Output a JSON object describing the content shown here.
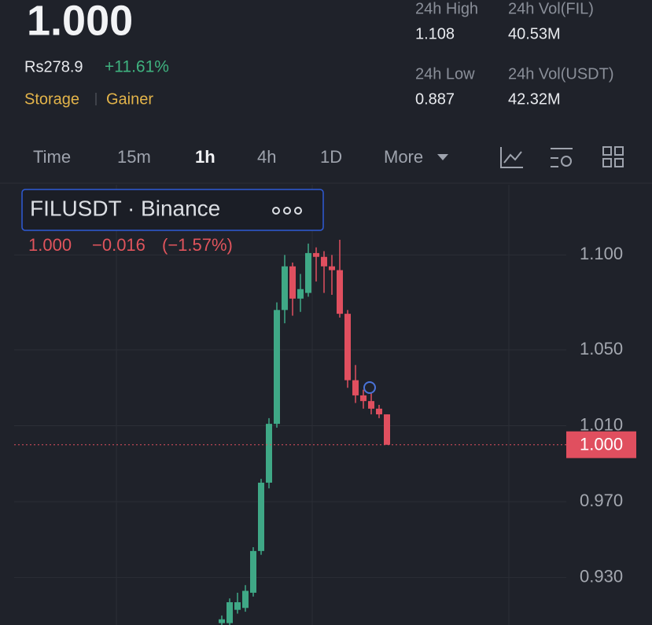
{
  "header": {
    "price": "1.000",
    "fiat_price": "Rs278.9",
    "change": "+11.61%",
    "tags": [
      "Storage",
      "Gainer"
    ],
    "stats": [
      {
        "label": "24h High",
        "value": "1.108"
      },
      {
        "label": "24h Vol(FIL)",
        "value": "40.53M"
      },
      {
        "label": "24h Low",
        "value": "0.887"
      },
      {
        "label": "24h Vol(USDT)",
        "value": "42.32M"
      }
    ]
  },
  "tabs": [
    "Time",
    "15m",
    "1h",
    "4h",
    "1D",
    "More"
  ],
  "chart_data": {
    "type": "candlestick",
    "title": "FILUSDT · Binance",
    "legend": {
      "close": "1.000",
      "change": "−0.016",
      "change_pct": "(−1.57%)"
    },
    "open": [
      0.906,
      0.906,
      0.913,
      0.914,
      0.922,
      0.944,
      0.98,
      1.011,
      1.071,
      1.094,
      1.077,
      1.08,
      1.101,
      1.099,
      1.094,
      1.092,
      1.069,
      1.034,
      1.026,
      1.023,
      1.019,
      1.016
    ],
    "high": [
      0.91,
      0.919,
      0.922,
      0.926,
      0.946,
      0.982,
      1.014,
      1.075,
      1.1,
      1.096,
      1.09,
      1.106,
      1.104,
      1.102,
      1.1,
      1.108,
      1.071,
      1.042,
      1.029,
      1.027,
      1.021,
      1.016
    ],
    "low": [
      0.905,
      0.905,
      0.911,
      0.912,
      0.92,
      0.942,
      0.977,
      1.009,
      1.064,
      1.068,
      1.07,
      1.078,
      1.086,
      1.08,
      1.079,
      1.067,
      1.03,
      1.022,
      1.019,
      1.016,
      1.014,
      1.0
    ],
    "close": [
      0.908,
      0.917,
      0.917,
      0.923,
      0.944,
      0.98,
      1.011,
      1.071,
      1.094,
      1.077,
      1.082,
      1.101,
      1.099,
      1.094,
      1.092,
      1.069,
      1.034,
      1.026,
      1.023,
      1.019,
      1.016,
      1.0
    ],
    "up_color": "#3fa886",
    "down_color": "#e04f5f",
    "ylim": [
      0.905,
      1.137
    ],
    "yticks": [
      {
        "value": 1.1,
        "label": "1.100"
      },
      {
        "value": 1.05,
        "label": "1.050"
      },
      {
        "value": 1.01,
        "label": "1.010"
      },
      {
        "value": 0.97,
        "label": "0.970"
      },
      {
        "value": 0.93,
        "label": "0.930"
      }
    ],
    "last_price": {
      "value": 1.0,
      "label": "1.000"
    },
    "grid": true
  }
}
